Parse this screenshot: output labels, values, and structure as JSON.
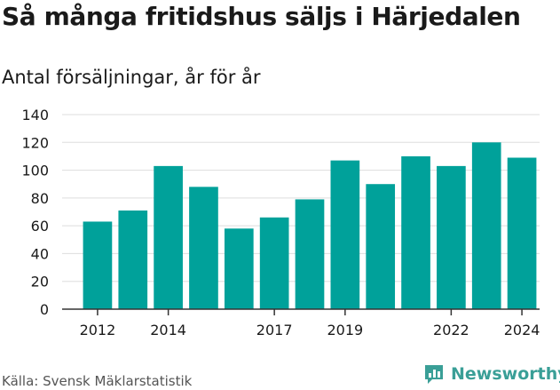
{
  "header": {
    "title": "Så många fritidshus säljs i Härjedalen",
    "subtitle": "Antal försäljningar, år för år"
  },
  "footer": {
    "source": "Källa: Svensk Mäklarstatistik",
    "brand": "Newsworthy",
    "brand_icon": "newsworthy-logo-icon"
  },
  "colors": {
    "bar": "#00a19a",
    "grid": "#dddddd",
    "axis": "#333333",
    "brand": "#3a9f97"
  },
  "chart_data": {
    "type": "bar",
    "title": "Så många fritidshus säljs i Härjedalen",
    "subtitle": "Antal försäljningar, år för år",
    "categories": [
      2012,
      2013,
      2014,
      2015,
      2016,
      2017,
      2018,
      2019,
      2020,
      2021,
      2022,
      2023,
      2024
    ],
    "values": [
      63,
      71,
      103,
      88,
      58,
      66,
      79,
      107,
      90,
      110,
      103,
      120,
      109
    ],
    "x_tick_labels": [
      "2012",
      "2014",
      "2017",
      "2019",
      "2022",
      "2024"
    ],
    "y_ticks": [
      0,
      20,
      40,
      60,
      80,
      100,
      120,
      140
    ],
    "ylim": [
      0,
      140
    ],
    "xlabel": "",
    "ylabel": "",
    "grid": "horizontal",
    "legend": "none"
  }
}
